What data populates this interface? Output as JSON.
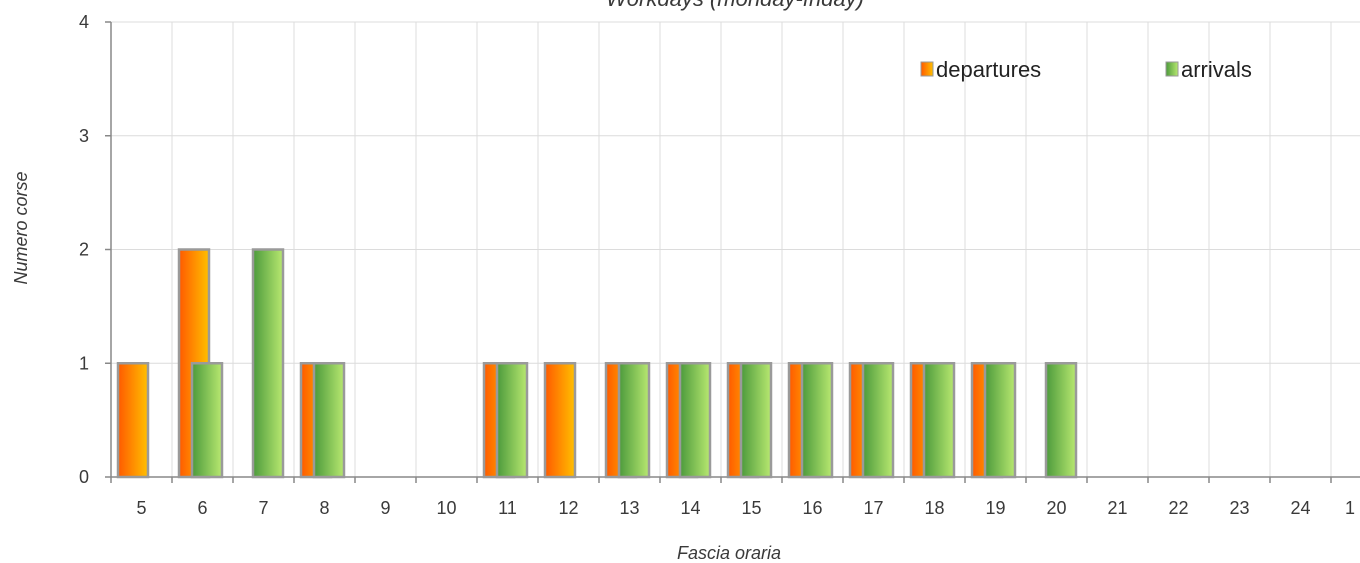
{
  "chart_data": {
    "type": "bar",
    "title": "Workdays (monday-friday)",
    "xlabel": "Fascia oraria",
    "ylabel": "Numero corse",
    "ylim": [
      0,
      4
    ],
    "yticks": [
      "0",
      "1",
      "2",
      "3",
      "4"
    ],
    "grid": true,
    "legend_position": "top-right",
    "categories": [
      "5",
      "6",
      "7",
      "8",
      "9",
      "10",
      "11",
      "12",
      "13",
      "14",
      "15",
      "16",
      "17",
      "18",
      "19",
      "20",
      "21",
      "22",
      "23",
      "24",
      "1"
    ],
    "series": [
      {
        "name": "departures",
        "color": "#ff8c00",
        "values": [
          1,
          2,
          0,
          1,
          0,
          0,
          1,
          1,
          1,
          1,
          1,
          1,
          1,
          1,
          1,
          0,
          0,
          0,
          0,
          0,
          0
        ]
      },
      {
        "name": "arrivals",
        "color": "#7cc242",
        "values": [
          0,
          1,
          2,
          1,
          0,
          0,
          1,
          0,
          1,
          1,
          1,
          1,
          1,
          1,
          1,
          1,
          0,
          0,
          0,
          0,
          0
        ]
      }
    ]
  }
}
